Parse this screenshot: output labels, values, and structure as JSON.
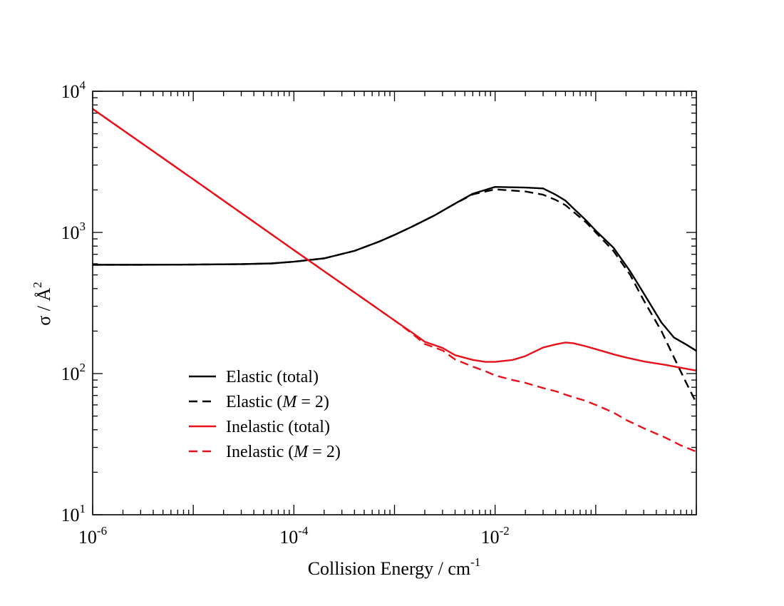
{
  "chart_data": {
    "type": "line",
    "title": "",
    "xlabel": "Collision Energy / cm",
    "xlabel_sup": "-1",
    "ylabel": "σ / Å",
    "ylabel_sup": "2",
    "xscale": "log",
    "yscale": "log",
    "xlim": [
      1e-06,
      1
    ],
    "ylim": [
      10,
      10000
    ],
    "grid": false,
    "legend_position": "lower-left",
    "x_ticks": [
      {
        "base": "10",
        "exp": "-6"
      },
      {
        "base": "10",
        "exp": "-4"
      },
      {
        "base": "10",
        "exp": "-2"
      }
    ],
    "y_ticks": [
      {
        "base": "10",
        "exp": "1"
      },
      {
        "base": "10",
        "exp": "2"
      },
      {
        "base": "10",
        "exp": "3"
      },
      {
        "base": "10",
        "exp": "4"
      }
    ],
    "series": [
      {
        "name": "Elastic (total)",
        "label_before": "Elastic (total)",
        "label_italic": "",
        "label_after": "",
        "color": "#000000",
        "dash": "solid",
        "x": [
          1e-06,
          3e-06,
          1e-05,
          3e-05,
          6e-05,
          0.0001,
          0.0002,
          0.0004,
          0.0007,
          0.001,
          0.0015,
          0.0025,
          0.004,
          0.006,
          0.01,
          0.02,
          0.03,
          0.04,
          0.05,
          0.06,
          0.08,
          0.1,
          0.15,
          0.22,
          0.3,
          0.45,
          0.6,
          0.8,
          1.0
        ],
        "y": [
          590,
          590,
          592,
          596,
          603,
          620,
          655,
          740,
          860,
          960,
          1100,
          1320,
          1600,
          1880,
          2100,
          2080,
          2050,
          1850,
          1680,
          1480,
          1220,
          1030,
          780,
          530,
          370,
          230,
          180,
          160,
          145
        ]
      },
      {
        "name": "Elastic (M = 2)",
        "label_before": "Elastic (",
        "label_italic": "M",
        "label_after": " = 2)",
        "color": "#000000",
        "dash": "dashed",
        "x": [
          1e-06,
          3e-06,
          1e-05,
          3e-05,
          6e-05,
          0.0001,
          0.0002,
          0.0004,
          0.0007,
          0.001,
          0.0015,
          0.0025,
          0.004,
          0.006,
          0.01,
          0.02,
          0.03,
          0.04,
          0.05,
          0.06,
          0.08,
          0.1,
          0.15,
          0.22,
          0.3,
          0.45,
          0.6,
          0.8,
          1.0
        ],
        "y": [
          590,
          590,
          592,
          596,
          603,
          620,
          655,
          740,
          860,
          960,
          1100,
          1320,
          1600,
          1860,
          2020,
          1950,
          1850,
          1700,
          1560,
          1400,
          1180,
          1000,
          740,
          500,
          330,
          200,
          130,
          85,
          62
        ]
      },
      {
        "name": "Inelastic (total)",
        "label_before": "Inelastic (total)",
        "label_italic": "",
        "label_after": "",
        "color": "#e8101a",
        "dash": "solid",
        "x": [
          1e-06,
          1e-05,
          0.0001,
          0.001,
          0.0015,
          0.002,
          0.003,
          0.004,
          0.006,
          0.008,
          0.01,
          0.015,
          0.02,
          0.03,
          0.04,
          0.05,
          0.06,
          0.08,
          0.1,
          0.15,
          0.2,
          0.3,
          0.5,
          0.7,
          1.0
        ],
        "y": [
          7500,
          2380,
          750,
          238,
          195,
          168,
          152,
          135,
          125,
          121,
          121,
          125,
          133,
          153,
          161,
          166,
          164,
          156,
          149,
          137,
          130,
          122,
          115,
          110,
          105
        ]
      },
      {
        "name": "Inelastic (M = 2)",
        "label_before": "Inelastic (",
        "label_italic": "M",
        "label_after": " = 2)",
        "color": "#e8101a",
        "dash": "dashed",
        "x": [
          1e-06,
          1e-05,
          0.0001,
          0.001,
          0.0015,
          0.002,
          0.003,
          0.004,
          0.006,
          0.008,
          0.01,
          0.015,
          0.02,
          0.03,
          0.04,
          0.05,
          0.06,
          0.08,
          0.1,
          0.15,
          0.2,
          0.3,
          0.5,
          0.7,
          1.0
        ],
        "y": [
          7500,
          2380,
          750,
          238,
          192,
          162,
          146,
          126,
          112,
          104,
          97,
          90,
          86,
          79,
          75,
          71,
          68,
          64,
          60,
          53,
          47,
          41,
          35,
          31,
          28
        ]
      }
    ]
  }
}
